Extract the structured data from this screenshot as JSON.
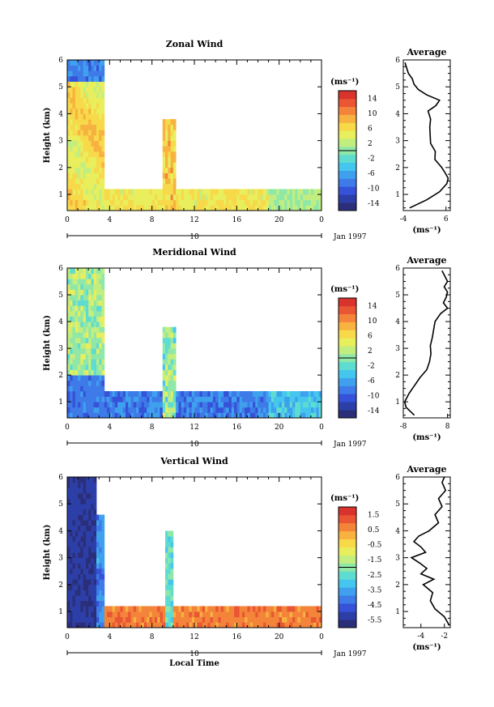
{
  "chart_data": [
    {
      "type": "heatmap",
      "title": "Zonal Wind",
      "ylabel": "Height (km)",
      "x_range": [
        0,
        24
      ],
      "x_ticks": [
        "0",
        "4",
        "8",
        "12",
        "16",
        "20",
        "0"
      ],
      "y_range": [
        0.4,
        6
      ],
      "y_ticks": [
        "1",
        "2",
        "3",
        "4",
        "5",
        "6"
      ],
      "colorbar": {
        "unit_label": "(ms⁻¹)",
        "tick_labels": [
          "14",
          "10",
          "6",
          "2",
          "-2",
          "-6",
          "-10",
          "-14"
        ],
        "range": [
          -16,
          16
        ],
        "colors": [
          "#2b2f7a",
          "#2c3fa8",
          "#3552d8",
          "#3e7ae8",
          "#3fa0ee",
          "#44c6ee",
          "#5fdcd0",
          "#8fe7a8",
          "#c2ee80",
          "#e8ee5c",
          "#f7d94a",
          "#f7b23f",
          "#f3843a",
          "#ea5533",
          "#d8332d"
        ]
      },
      "date_axis": {
        "tick_label": "10",
        "label": "Jan 1997"
      },
      "average_profile": {
        "title": "Average",
        "xlabel": "(ms⁻¹)",
        "x_ticks": [
          "-4",
          "6"
        ],
        "x_range": [
          -4,
          7
        ],
        "y_ticks": [
          "1",
          "2",
          "3",
          "4",
          "5",
          "6"
        ],
        "heights": [
          0.5,
          0.8,
          1.1,
          1.4,
          1.6,
          1.8,
          2.0,
          2.3,
          2.6,
          2.9,
          3.2,
          3.5,
          3.8,
          4.1,
          4.3,
          4.5,
          4.7,
          4.9,
          5.1,
          5.3,
          5.5,
          5.7,
          5.9
        ],
        "values": [
          -2.5,
          1.5,
          4.5,
          6.2,
          6.5,
          5.8,
          5.0,
          3.4,
          3.5,
          2.4,
          2.3,
          2.2,
          2.4,
          1.8,
          3.6,
          4.5,
          1.5,
          -0.5,
          -1.5,
          -1.9,
          -2.8,
          -3.2,
          -3.6
        ]
      }
    },
    {
      "type": "heatmap",
      "title": "Meridional Wind",
      "ylabel": "Height (km)",
      "x_range": [
        0,
        24
      ],
      "x_ticks": [
        "0",
        "4",
        "8",
        "12",
        "16",
        "20",
        "0"
      ],
      "y_range": [
        0.4,
        6
      ],
      "y_ticks": [
        "1",
        "2",
        "3",
        "4",
        "5",
        "6"
      ],
      "colorbar": {
        "unit_label": "(ms⁻¹)",
        "tick_labels": [
          "14",
          "10",
          "6",
          "2",
          "-2",
          "-6",
          "-10",
          "-14"
        ],
        "range": [
          -16,
          16
        ],
        "colors": [
          "#2b2f7a",
          "#2c3fa8",
          "#3552d8",
          "#3e7ae8",
          "#3fa0ee",
          "#44c6ee",
          "#5fdcd0",
          "#8fe7a8",
          "#c2ee80",
          "#e8ee5c",
          "#f7d94a",
          "#f7b23f",
          "#f3843a",
          "#ea5533",
          "#d8332d"
        ]
      },
      "date_axis": {
        "tick_label": "10",
        "label": "Jan 1997"
      },
      "average_profile": {
        "title": "Average",
        "xlabel": "(ms⁻¹)",
        "x_ticks": [
          "-8",
          "8"
        ],
        "x_range": [
          -8,
          9
        ],
        "y_ticks": [
          "1",
          "2",
          "3",
          "4",
          "5",
          "6"
        ],
        "heights": [
          0.5,
          0.8,
          1.0,
          1.3,
          1.6,
          1.9,
          2.2,
          2.5,
          2.8,
          3.1,
          3.4,
          3.7,
          4.0,
          4.3,
          4.5,
          4.7,
          4.9,
          5.1,
          5.3,
          5.5,
          5.7,
          5.9
        ],
        "values": [
          -4.0,
          -7.0,
          -7.5,
          -6.0,
          -4.0,
          -2.0,
          0.5,
          1.5,
          2.0,
          1.8,
          2.5,
          3.0,
          3.5,
          5.5,
          8.0,
          6.5,
          7.5,
          8.0,
          6.8,
          8.0,
          7.0,
          6.0
        ]
      }
    },
    {
      "type": "heatmap",
      "title": "Vertical Wind",
      "ylabel": "Height (km)",
      "xlabel": "Local Time",
      "x_range": [
        0,
        24
      ],
      "x_ticks": [
        "0",
        "4",
        "8",
        "12",
        "16",
        "20",
        "0"
      ],
      "y_range": [
        0.4,
        6
      ],
      "y_ticks": [
        "1",
        "2",
        "3",
        "4",
        "5",
        "6"
      ],
      "colorbar": {
        "unit_label": "(ms⁻¹)",
        "tick_labels": [
          "1.5",
          "0.5",
          "-0.5",
          "-1.5",
          "-2.5",
          "-3.5",
          "-4.5",
          "-5.5"
        ],
        "range": [
          -6,
          2
        ],
        "colors": [
          "#2b2f7a",
          "#2c3fa8",
          "#3552d8",
          "#3e7ae8",
          "#3fa0ee",
          "#44c6ee",
          "#5fdcd0",
          "#8fe7a8",
          "#c2ee80",
          "#e8ee5c",
          "#f7d94a",
          "#f7b23f",
          "#f3843a",
          "#ea5533",
          "#d8332d"
        ]
      },
      "date_axis": {
        "tick_label": "10",
        "label": "Jan 1997"
      },
      "average_profile": {
        "title": "Average",
        "xlabel": "(ms⁻¹)",
        "x_ticks": [
          "-4",
          "-2"
        ],
        "x_range": [
          -5.5,
          -1.5
        ],
        "y_ticks": [
          "1",
          "2",
          "3",
          "4",
          "5",
          "6"
        ],
        "heights": [
          0.5,
          0.8,
          1.1,
          1.4,
          1.7,
          2.0,
          2.2,
          2.4,
          2.6,
          2.8,
          3.0,
          3.2,
          3.4,
          3.6,
          3.8,
          4.0,
          4.3,
          4.6,
          4.9,
          5.2,
          5.5,
          5.8,
          6.0
        ],
        "values": [
          -1.6,
          -2.0,
          -2.8,
          -3.2,
          -3.0,
          -3.8,
          -2.9,
          -4.0,
          -3.5,
          -4.1,
          -4.8,
          -3.6,
          -4.0,
          -4.6,
          -4.2,
          -3.3,
          -2.5,
          -2.8,
          -2.2,
          -2.5,
          -1.9,
          -2.2,
          -2.0
        ]
      }
    }
  ]
}
